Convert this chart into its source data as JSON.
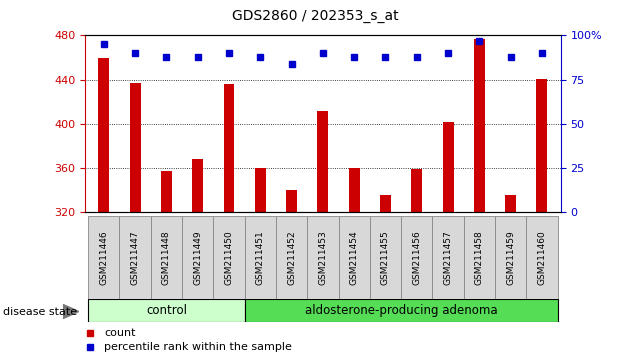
{
  "title": "GDS2860 / 202353_s_at",
  "categories": [
    "GSM211446",
    "GSM211447",
    "GSM211448",
    "GSM211449",
    "GSM211450",
    "GSM211451",
    "GSM211452",
    "GSM211453",
    "GSM211454",
    "GSM211455",
    "GSM211456",
    "GSM211457",
    "GSM211458",
    "GSM211459",
    "GSM211460"
  ],
  "counts": [
    460,
    437,
    357,
    368,
    436,
    360,
    340,
    412,
    360,
    336,
    359,
    402,
    477,
    336,
    441
  ],
  "percentiles": [
    95,
    90,
    88,
    88,
    90,
    88,
    84,
    90,
    88,
    88,
    88,
    90,
    97,
    88,
    90
  ],
  "ylim_left": [
    320,
    480
  ],
  "ylim_right": [
    0,
    100
  ],
  "yticks_left": [
    320,
    360,
    400,
    440,
    480
  ],
  "yticks_right": [
    0,
    25,
    50,
    75,
    100
  ],
  "bar_color": "#cc0000",
  "dot_color": "#0000cc",
  "control_group_n": 5,
  "control_label": "control",
  "adenoma_label": "aldosterone-producing adenoma",
  "disease_state_label": "disease state",
  "legend_count": "count",
  "legend_percentile": "percentile rank within the sample",
  "control_color": "#ccffcc",
  "adenoma_color": "#55dd55",
  "tick_label_bg": "#d8d8d8",
  "tick_color_left": "#cc0000",
  "tick_color_right": "#0000cc",
  "bar_width": 0.35
}
